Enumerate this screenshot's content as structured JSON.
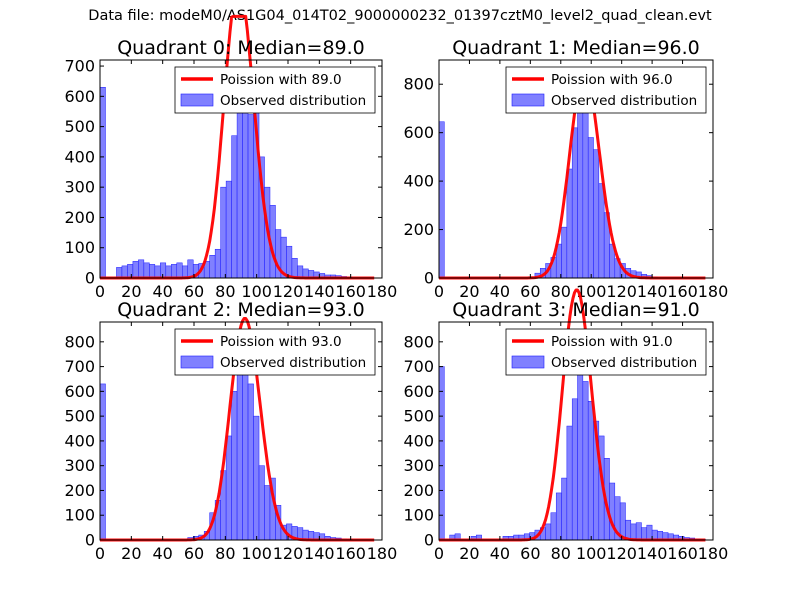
{
  "figure_title": "Data file: modeM0/AS1G04_014T02_9000000232_01397cztM0_level2_quad_clean.evt",
  "colors": {
    "bar_fill": "#8080ff",
    "bar_edge": "#1a1aff",
    "line": "#ff0000",
    "line_over_bar": "#ff8a8a"
  },
  "chart_data": [
    {
      "type": "bar",
      "title": "Quadrant 0: Median=89.0",
      "xlim": [
        0,
        180
      ],
      "ylim": [
        0,
        720
      ],
      "xticks": [
        0,
        20,
        40,
        60,
        80,
        100,
        120,
        140,
        160,
        180
      ],
      "yticks": [
        0,
        100,
        200,
        300,
        400,
        500,
        600,
        700
      ],
      "bin_width": 3.5,
      "bin_starts": [
        0,
        10.5,
        14,
        17.5,
        21,
        24.5,
        28,
        31.5,
        35,
        38.5,
        42,
        45.5,
        49,
        52.5,
        56,
        59.5,
        63,
        66.5,
        70,
        73.5,
        77,
        80.5,
        84,
        87.5,
        91,
        94.5,
        98,
        101.5,
        105,
        108.5,
        112,
        115.5,
        119,
        122.5,
        126,
        129.5,
        133,
        136.5,
        140,
        143.5,
        147,
        150.5,
        154,
        157.5
      ],
      "values": [
        630,
        35,
        40,
        45,
        55,
        60,
        50,
        45,
        40,
        50,
        40,
        45,
        50,
        40,
        60,
        45,
        48,
        55,
        75,
        95,
        300,
        320,
        470,
        580,
        590,
        540,
        560,
        400,
        300,
        240,
        160,
        135,
        105,
        65,
        40,
        30,
        25,
        20,
        15,
        10,
        10,
        8,
        5,
        3
      ],
      "poisson_mean": 89.0,
      "legend": [
        "Poission with 89.0",
        "Observed distribution"
      ],
      "legend_position": "upper-right"
    },
    {
      "type": "bar",
      "title": "Quadrant 1: Median=96.0",
      "xlim": [
        0,
        180
      ],
      "ylim": [
        0,
        900
      ],
      "xticks": [
        0,
        20,
        40,
        60,
        80,
        100,
        120,
        140,
        160,
        180
      ],
      "yticks": [
        0,
        200,
        400,
        600,
        800
      ],
      "bin_width": 3.5,
      "bin_starts": [
        0,
        63,
        66.5,
        70,
        73.5,
        77,
        80.5,
        84,
        87.5,
        91,
        94.5,
        98,
        101.5,
        105,
        108.5,
        112,
        115.5,
        119,
        122.5,
        126,
        129.5,
        133,
        136.5,
        140
      ],
      "values": [
        645,
        20,
        40,
        60,
        85,
        140,
        210,
        450,
        620,
        750,
        760,
        580,
        530,
        390,
        270,
        140,
        80,
        60,
        40,
        30,
        25,
        15,
        10,
        5
      ],
      "poisson_mean": 96.0,
      "legend": [
        "Poission with 96.0",
        "Observed distribution"
      ],
      "legend_position": "upper-right"
    },
    {
      "type": "bar",
      "title": "Quadrant 2: Median=93.0",
      "xlim": [
        0,
        180
      ],
      "ylim": [
        0,
        880
      ],
      "xticks": [
        0,
        20,
        40,
        60,
        80,
        100,
        120,
        140,
        160,
        180
      ],
      "yticks": [
        0,
        100,
        200,
        300,
        400,
        500,
        600,
        700,
        800
      ],
      "bin_width": 3.5,
      "bin_starts": [
        0,
        56,
        59.5,
        63,
        66.5,
        70,
        73.5,
        77,
        80.5,
        84,
        87.5,
        91,
        94.5,
        98,
        101.5,
        105,
        108.5,
        112,
        115.5,
        119,
        122.5,
        126,
        129.5,
        133,
        136.5,
        140,
        143.5,
        147,
        150.5,
        154,
        157.5
      ],
      "values": [
        630,
        10,
        15,
        20,
        35,
        110,
        160,
        280,
        420,
        600,
        670,
        790,
        630,
        500,
        300,
        220,
        250,
        140,
        60,
        65,
        55,
        50,
        40,
        35,
        30,
        25,
        15,
        10,
        8,
        5,
        3
      ],
      "poisson_mean": 93.0,
      "legend": [
        "Poission with 93.0",
        "Observed distribution"
      ],
      "legend_position": "upper-right"
    },
    {
      "type": "bar",
      "title": "Quadrant 3: Median=91.0",
      "xlim": [
        0,
        180
      ],
      "ylim": [
        0,
        880
      ],
      "xticks": [
        0,
        20,
        40,
        60,
        80,
        100,
        120,
        140,
        160,
        180
      ],
      "yticks": [
        0,
        100,
        200,
        300,
        400,
        500,
        600,
        700,
        800
      ],
      "bin_width": 3.5,
      "bin_starts": [
        0,
        7,
        10.5,
        21,
        24.5,
        42,
        45.5,
        49,
        52.5,
        56,
        59.5,
        63,
        66.5,
        70,
        73.5,
        77,
        80.5,
        84,
        87.5,
        91,
        94.5,
        98,
        101.5,
        105,
        108.5,
        112,
        115.5,
        119,
        122.5,
        126,
        129.5,
        133,
        136.5,
        140,
        143.5,
        147,
        150.5,
        154,
        157.5,
        161,
        164.5,
        168,
        171.5
      ],
      "values": [
        700,
        20,
        25,
        15,
        20,
        15,
        15,
        20,
        20,
        25,
        30,
        40,
        50,
        65,
        110,
        190,
        250,
        460,
        570,
        760,
        640,
        560,
        480,
        420,
        330,
        230,
        175,
        150,
        80,
        65,
        70,
        50,
        60,
        40,
        35,
        30,
        25,
        20,
        15,
        10,
        8,
        5,
        3
      ],
      "poisson_mean": 91.0,
      "legend": [
        "Poission with 91.0",
        "Observed distribution"
      ],
      "legend_position": "upper-right"
    }
  ]
}
